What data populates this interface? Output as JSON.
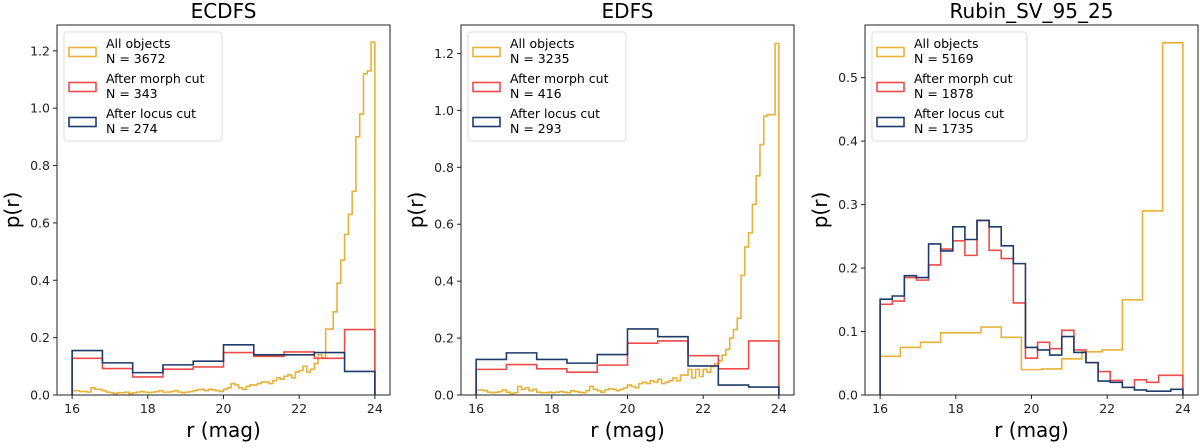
{
  "chart_data": [
    {
      "type": "bar",
      "histtype": "step",
      "title": "ECDFS",
      "xlabel": "r (mag)",
      "ylabel": "p(r)",
      "xlim": [
        15.6,
        24.4
      ],
      "ylim": [
        0,
        1.29
      ],
      "xticks": [
        "16",
        "18",
        "20",
        "22",
        "24"
      ],
      "yticks": [
        "0.0",
        "0.2",
        "0.4",
        "0.6",
        "0.8",
        "1.0",
        "1.2"
      ],
      "grid": false,
      "legend_position": "upper-left",
      "series": [
        {
          "name": "All objects",
          "count_label": "N = 3672",
          "color": "#e8b23a",
          "range": [
            16,
            24
          ],
          "values": [
            0.015,
            0.015,
            0.012,
            0.012,
            0.01,
            0.025,
            0.02,
            0.02,
            0.015,
            0.01,
            0.008,
            0.005,
            0.008,
            0.008,
            0.01,
            0.005,
            0.008,
            0.01,
            0.012,
            0.01,
            0.008,
            0.01,
            0.012,
            0.015,
            0.01,
            0.01,
            0.012,
            0.015,
            0.01,
            0.008,
            0.01,
            0.012,
            0.015,
            0.018,
            0.02,
            0.015,
            0.02,
            0.018,
            0.015,
            0.012,
            0.02,
            0.025,
            0.04,
            0.035,
            0.025,
            0.02,
            0.03,
            0.035,
            0.035,
            0.04,
            0.045,
            0.045,
            0.04,
            0.05,
            0.06,
            0.055,
            0.065,
            0.07,
            0.06,
            0.08,
            0.085,
            0.1,
            0.08,
            0.09,
            0.11,
            0.14,
            0.13,
            0.23,
            0.23,
            0.29,
            0.39,
            0.47,
            0.56,
            0.63,
            0.71,
            0.9,
            0.98,
            1.12,
            1.13,
            1.23
          ]
        },
        {
          "name": "After morph cut",
          "count_label": "N = 343",
          "color": "#ee4b4b",
          "range": [
            16,
            24
          ],
          "values": [
            0.128,
            0.092,
            0.063,
            0.09,
            0.098,
            0.148,
            0.135,
            0.15,
            0.128,
            0.228
          ]
        },
        {
          "name": "After locus cut",
          "count_label": "N = 274",
          "color": "#1d3c6c",
          "range": [
            16,
            24
          ],
          "values": [
            0.155,
            0.112,
            0.078,
            0.105,
            0.118,
            0.175,
            0.14,
            0.14,
            0.148,
            0.082
          ]
        }
      ]
    },
    {
      "type": "bar",
      "histtype": "step",
      "title": "EDFS",
      "xlabel": "r (mag)",
      "ylabel": "p(r)",
      "xlim": [
        15.6,
        24.4
      ],
      "ylim": [
        0,
        1.3
      ],
      "xticks": [
        "16",
        "18",
        "20",
        "22",
        "24"
      ],
      "yticks": [
        "0.0",
        "0.2",
        "0.4",
        "0.6",
        "0.8",
        "1.0",
        "1.2"
      ],
      "grid": false,
      "legend_position": "upper-left",
      "series": [
        {
          "name": "All objects",
          "count_label": "N = 3235",
          "color": "#e8b23a",
          "range": [
            16,
            24
          ],
          "values": [
            0.018,
            0.018,
            0.015,
            0.01,
            0.008,
            0.01,
            0.012,
            0.018,
            0.01,
            0.005,
            0.008,
            0.03,
            0.02,
            0.025,
            0.015,
            0.02,
            0.01,
            0.008,
            0.008,
            0.01,
            0.008,
            0.01,
            0.012,
            0.01,
            0.008,
            0.015,
            0.012,
            0.01,
            0.008,
            0.015,
            0.03,
            0.02,
            0.015,
            0.01,
            0.018,
            0.022,
            0.02,
            0.015,
            0.02,
            0.025,
            0.035,
            0.03,
            0.025,
            0.04,
            0.045,
            0.04,
            0.05,
            0.045,
            0.055,
            0.04,
            0.045,
            0.05,
            0.06,
            0.05,
            0.07,
            0.07,
            0.09,
            0.06,
            0.09,
            0.065,
            0.09,
            0.08,
            0.1,
            0.11,
            0.12,
            0.14,
            0.16,
            0.2,
            0.23,
            0.27,
            0.42,
            0.52,
            0.57,
            0.67,
            0.77,
            0.88,
            0.98,
            0.985,
            0.985,
            1.235
          ]
        },
        {
          "name": "After morph cut",
          "count_label": "N = 416",
          "color": "#ee4b4b",
          "range": [
            16,
            24
          ],
          "values": [
            0.09,
            0.107,
            0.092,
            0.08,
            0.105,
            0.182,
            0.19,
            0.138,
            0.092,
            0.19
          ]
        },
        {
          "name": "After locus cut",
          "count_label": "N = 293",
          "color": "#1d3c6c",
          "range": [
            16,
            24
          ],
          "values": [
            0.125,
            0.148,
            0.125,
            0.112,
            0.142,
            0.232,
            0.205,
            0.102,
            0.035,
            0.028
          ]
        }
      ]
    },
    {
      "type": "bar",
      "histtype": "step",
      "title": "Rubin_SV_95_25",
      "xlabel": "r (mag)",
      "ylabel": "p(r)",
      "xlim": [
        15.6,
        24.4
      ],
      "ylim": [
        0,
        0.583
      ],
      "xticks": [
        "16",
        "18",
        "20",
        "22",
        "24"
      ],
      "yticks": [
        "0.0",
        "0.1",
        "0.2",
        "0.3",
        "0.4",
        "0.5"
      ],
      "grid": false,
      "legend_position": "upper-left",
      "series": [
        {
          "name": "All objects",
          "count_label": "N = 5169",
          "color": "#e8b23a",
          "range": [
            16,
            24
          ],
          "values": [
            0.061,
            0.075,
            0.083,
            0.098,
            0.098,
            0.107,
            0.091,
            0.04,
            0.041,
            0.057,
            0.068,
            0.071,
            0.15,
            0.29,
            0.555
          ]
        },
        {
          "name": "After morph cut",
          "count_label": "N = 1878",
          "color": "#ee4b4b",
          "range": [
            16,
            24
          ],
          "values": [
            0.143,
            0.148,
            0.185,
            0.181,
            0.205,
            0.23,
            0.243,
            0.22,
            0.275,
            0.228,
            0.215,
            0.145,
            0.058,
            0.083,
            0.073,
            0.102,
            0.071,
            0.051,
            0.037,
            0.023,
            0.012,
            0.024,
            0.02,
            0.031,
            0.031
          ]
        },
        {
          "name": "After locus cut",
          "count_label": "N = 1735",
          "color": "#1d3c6c",
          "range": [
            16,
            24
          ],
          "values": [
            0.151,
            0.156,
            0.188,
            0.185,
            0.238,
            0.227,
            0.265,
            0.245,
            0.275,
            0.265,
            0.235,
            0.207,
            0.075,
            0.071,
            0.063,
            0.092,
            0.067,
            0.051,
            0.022,
            0.02,
            0.012,
            0.008,
            0.006,
            0.006,
            0.009
          ]
        }
      ]
    }
  ]
}
